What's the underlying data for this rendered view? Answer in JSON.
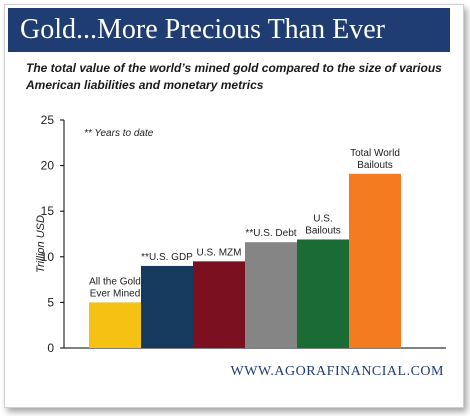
{
  "header": {
    "title": "Gold...More Precious Than Ever"
  },
  "subtitle": {
    "line1": "The total value of the world’s mined gold compared to the size of various",
    "line2": "American liabilities and monetary metrics"
  },
  "footer": {
    "url": "WWW.AGORAFINANCIAL.COM"
  },
  "colors": {
    "header_bg": "#1f3d72",
    "footer_text": "#1f3d72"
  },
  "chart_data": {
    "type": "bar",
    "ylabel": "Trillion USD",
    "ylim": [
      0,
      25
    ],
    "yticks": [
      0,
      5,
      10,
      15,
      20,
      25
    ],
    "grid": false,
    "note": "** Years to date",
    "bars": [
      {
        "label_lines": [
          "All the Gold",
          "Ever Mined"
        ],
        "value": 5.0,
        "color": "#f5c113"
      },
      {
        "label_lines": [
          "**U.S. GDP"
        ],
        "value": 9.0,
        "color": "#163a5e"
      },
      {
        "label_lines": [
          "U.S. MZM"
        ],
        "value": 9.5,
        "color": "#7a1020"
      },
      {
        "label_lines": [
          "**U.S. Debt"
        ],
        "value": 11.6,
        "color": "#858585"
      },
      {
        "label_lines": [
          "U.S.",
          "Bailouts"
        ],
        "value": 11.9,
        "color": "#1b6b35"
      },
      {
        "label_lines": [
          "Total World",
          "Bailouts"
        ],
        "value": 19.1,
        "color": "#f47b20"
      }
    ]
  }
}
